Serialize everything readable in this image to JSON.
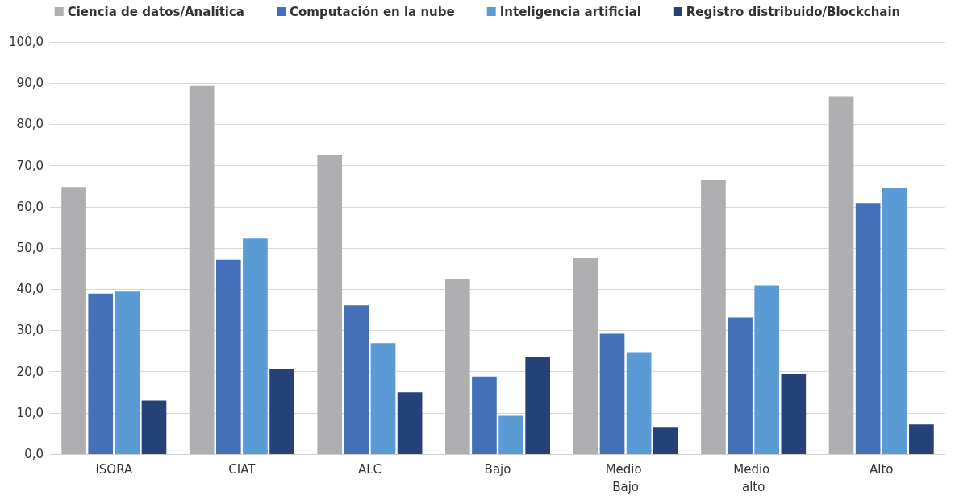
{
  "chart_data": {
    "type": "bar",
    "categories": [
      "ISORA",
      "CIAT",
      "ALC",
      "Bajo",
      "Medio Bajo",
      "Medio alto",
      "Alto"
    ],
    "series": [
      {
        "name": "Ciencia de datos/Analítica",
        "color": "#afafb2",
        "values": [
          64.8,
          89.3,
          72.5,
          42.6,
          47.5,
          66.4,
          86.8
        ]
      },
      {
        "name": "Computación en la nube",
        "color": "#4470ba",
        "values": [
          38.9,
          47.1,
          36.1,
          18.8,
          29.2,
          33.1,
          60.9
        ]
      },
      {
        "name": "Inteligencia artificial",
        "color": "#5b9bd5",
        "values": [
          39.4,
          52.3,
          26.9,
          9.3,
          24.7,
          40.9,
          64.6
        ]
      },
      {
        "name": "Registro distribuido/Blockchain",
        "color": "#244278",
        "values": [
          13.0,
          20.7,
          15.0,
          23.5,
          6.6,
          19.4,
          7.2
        ]
      }
    ],
    "ylim": [
      0,
      100
    ],
    "yticks": [
      {
        "value": 0,
        "label": "0,0"
      },
      {
        "value": 10,
        "label": "10,0"
      },
      {
        "value": 20,
        "label": "20,0"
      },
      {
        "value": 30,
        "label": "30,0"
      },
      {
        "value": 40,
        "label": "40,0"
      },
      {
        "value": 50,
        "label": "50,0"
      },
      {
        "value": 60,
        "label": "60,0"
      },
      {
        "value": 70,
        "label": "70,0"
      },
      {
        "value": 80,
        "label": "80,0"
      },
      {
        "value": 90,
        "label": "90,0"
      },
      {
        "value": 100,
        "label": "100,0"
      }
    ],
    "grid": "y",
    "legend": "top"
  }
}
